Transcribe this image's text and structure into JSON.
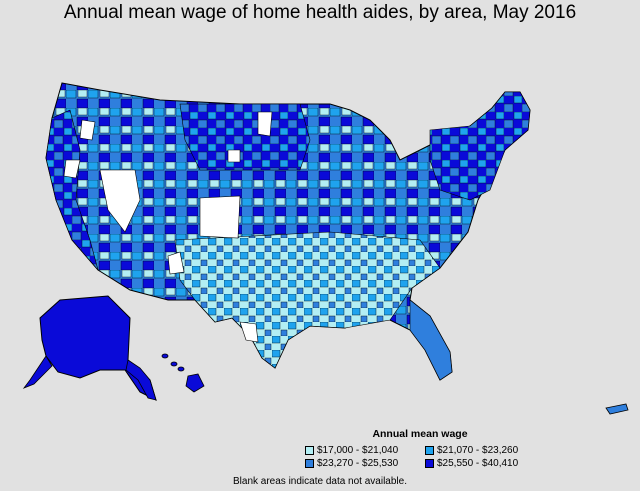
{
  "title": "Annual mean wage of home health aides, by area, May 2016",
  "legend": {
    "title": "Annual mean wage",
    "items": [
      {
        "label": "$17,000 - $21,040",
        "color": "#b3eef3"
      },
      {
        "label": "$21,070 - $23,260",
        "color": "#1fa3ee"
      },
      {
        "label": "$23,270 - $25,530",
        "color": "#2f7fdd"
      },
      {
        "label": "$25,550 - $40,410",
        "color": "#0a0ad8"
      }
    ]
  },
  "note": "Blank areas indicate data not available.",
  "colors": {
    "background": "#e1e1e1",
    "no_data": "#ffffff",
    "border": "#000000"
  }
}
